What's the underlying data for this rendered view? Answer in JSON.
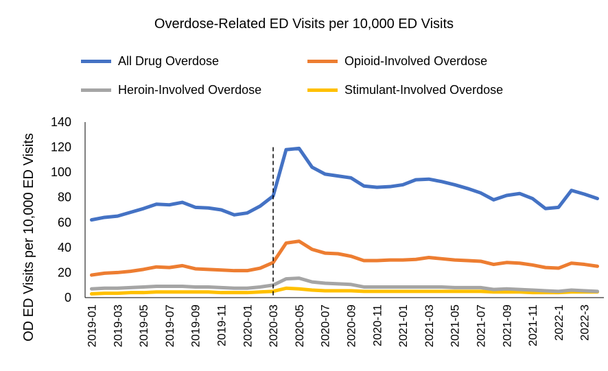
{
  "chart_data": {
    "type": "line",
    "title": "Overdose-Related ED Visits per 10,000 ED Visits",
    "xlabel": "",
    "ylabel": "OD ED Visits per 10,000 ED Visits",
    "ylim": [
      0,
      140
    ],
    "yticks": [
      "0",
      "20",
      "40",
      "60",
      "80",
      "100",
      "120",
      "140"
    ],
    "grid": false,
    "legend": "top",
    "x": [
      "2019-01",
      "2019-02",
      "2019-03",
      "2019-04",
      "2019-05",
      "2019-06",
      "2019-07",
      "2019-08",
      "2019-09",
      "2019-10",
      "2019-11",
      "2019-12",
      "2020-01",
      "2020-02",
      "2020-03",
      "2020-04",
      "2020-05",
      "2020-06",
      "2020-07",
      "2020-08",
      "2020-09",
      "2020-10",
      "2020-11",
      "2020-12",
      "2021-01",
      "2021-02",
      "2021-03",
      "2021-04",
      "2021-05",
      "2021-06",
      "2021-07",
      "2021-08",
      "2021-09",
      "2021-10",
      "2021-11",
      "2021-12",
      "2022-1",
      "2022-2",
      "2022-3",
      "2022-4"
    ],
    "xtick_labels": [
      "2019-01",
      "2019-03",
      "2019-05",
      "2019-07",
      "2019-09",
      "2019-11",
      "2020-01",
      "2020-03",
      "2020-05",
      "2020-07",
      "2020-09",
      "2020-11",
      "2021-01",
      "2021-03",
      "2021-05",
      "2021-07",
      "2021-09",
      "2021-11",
      "2022-1",
      "2022-3"
    ],
    "vline_at": "2020-03",
    "series": [
      {
        "name": "All Drug Overdose",
        "color": "#4472C4",
        "values": [
          62,
          64,
          65,
          68,
          71,
          74.5,
          74,
          76,
          72,
          71.5,
          70,
          66,
          67.5,
          73,
          81,
          118,
          119,
          104,
          98.5,
          97,
          95.5,
          89,
          88,
          88.5,
          90,
          94,
          94.5,
          92.5,
          90,
          87,
          83.5,
          78,
          81.5,
          83,
          79,
          71,
          72,
          85.5,
          82.5,
          79
        ]
      },
      {
        "name": "Opioid-Involved Overdose",
        "color": "#ED7D31",
        "values": [
          18,
          19.5,
          20,
          21,
          22.5,
          24.5,
          24,
          25.5,
          23,
          22.5,
          22,
          21.5,
          21.5,
          23.5,
          28,
          43.5,
          45,
          38.5,
          35.5,
          35,
          33,
          29.5,
          29.5,
          30,
          30,
          30.5,
          32,
          31,
          30,
          29.5,
          29,
          26.5,
          28,
          27.5,
          26,
          24,
          23.5,
          27.5,
          26.5,
          25
        ]
      },
      {
        "name": "Heroin-Involved Overdose",
        "color": "#A5A5A5",
        "values": [
          7,
          7.5,
          7.5,
          8,
          8.5,
          9,
          9,
          9,
          8.5,
          8.5,
          8,
          7.5,
          7.5,
          8.5,
          10,
          15,
          15.5,
          12.5,
          11.5,
          11,
          10.5,
          8.5,
          8.5,
          8.5,
          8.5,
          8.5,
          8.5,
          8.5,
          8,
          8,
          8,
          6.5,
          7,
          6.5,
          6,
          5.5,
          5,
          6,
          5.5,
          5
        ]
      },
      {
        "name": "Stimulant-Involved Overdose",
        "color": "#FFC000",
        "values": [
          3,
          3.5,
          3.5,
          4,
          4,
          4.5,
          4.5,
          4.5,
          4.5,
          4.5,
          4,
          4,
          4,
          4.5,
          5,
          7.5,
          7,
          6,
          5.5,
          5.5,
          5.5,
          5,
          5,
          5,
          5,
          5,
          5,
          5,
          5,
          5,
          5,
          4.5,
          4.5,
          4.5,
          4,
          4,
          4,
          4.5,
          4.5,
          4.5
        ]
      }
    ]
  }
}
